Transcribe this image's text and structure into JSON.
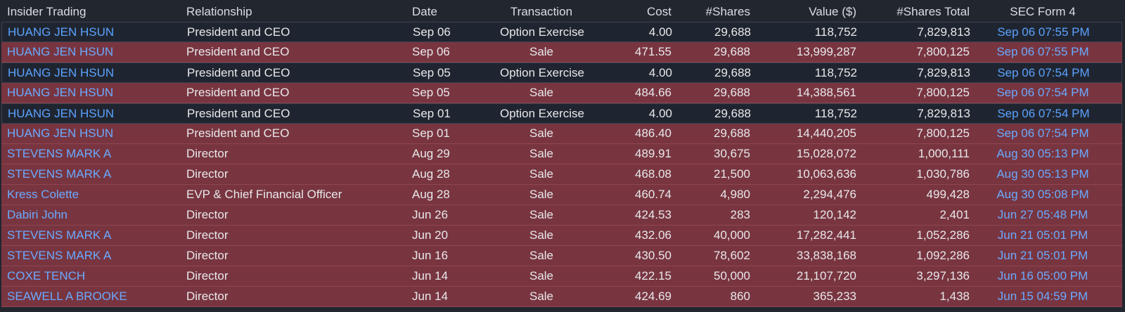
{
  "columns": {
    "insider": "Insider Trading",
    "relationship": "Relationship",
    "date": "Date",
    "transaction": "Transaction",
    "cost": "Cost",
    "shares": "#Shares",
    "value": "Value ($)",
    "shares_total": "#Shares Total",
    "sec_form": "SEC Form 4"
  },
  "colors": {
    "background": "#22262f",
    "buy_row": "#1f2530",
    "sale_row": "#783540",
    "link": "#5aa2ff",
    "text": "#e8e8ea"
  },
  "rows": [
    {
      "insider": "HUANG JEN HSUN",
      "relationship": "President and CEO",
      "date": "Sep 06",
      "transaction": "Option Exercise",
      "cost": "4.00",
      "shares": "29,688",
      "value": "118,752",
      "shares_total": "7,829,813",
      "sec_form": "Sep 06 07:55 PM",
      "kind": "buy"
    },
    {
      "insider": "HUANG JEN HSUN",
      "relationship": "President and CEO",
      "date": "Sep 06",
      "transaction": "Sale",
      "cost": "471.55",
      "shares": "29,688",
      "value": "13,999,287",
      "shares_total": "7,800,125",
      "sec_form": "Sep 06 07:55 PM",
      "kind": "sale"
    },
    {
      "insider": "HUANG JEN HSUN",
      "relationship": "President and CEO",
      "date": "Sep 05",
      "transaction": "Option Exercise",
      "cost": "4.00",
      "shares": "29,688",
      "value": "118,752",
      "shares_total": "7,829,813",
      "sec_form": "Sep 06 07:54 PM",
      "kind": "buy"
    },
    {
      "insider": "HUANG JEN HSUN",
      "relationship": "President and CEO",
      "date": "Sep 05",
      "transaction": "Sale",
      "cost": "484.66",
      "shares": "29,688",
      "value": "14,388,561",
      "shares_total": "7,800,125",
      "sec_form": "Sep 06 07:54 PM",
      "kind": "sale"
    },
    {
      "insider": "HUANG JEN HSUN",
      "relationship": "President and CEO",
      "date": "Sep 01",
      "transaction": "Option Exercise",
      "cost": "4.00",
      "shares": "29,688",
      "value": "118,752",
      "shares_total": "7,829,813",
      "sec_form": "Sep 06 07:54 PM",
      "kind": "buy"
    },
    {
      "insider": "HUANG JEN HSUN",
      "relationship": "President and CEO",
      "date": "Sep 01",
      "transaction": "Sale",
      "cost": "486.40",
      "shares": "29,688",
      "value": "14,440,205",
      "shares_total": "7,800,125",
      "sec_form": "Sep 06 07:54 PM",
      "kind": "sale"
    },
    {
      "insider": "STEVENS MARK A",
      "relationship": "Director",
      "date": "Aug 29",
      "transaction": "Sale",
      "cost": "489.91",
      "shares": "30,675",
      "value": "15,028,072",
      "shares_total": "1,000,111",
      "sec_form": "Aug 30 05:13 PM",
      "kind": "sale"
    },
    {
      "insider": "STEVENS MARK A",
      "relationship": "Director",
      "date": "Aug 28",
      "transaction": "Sale",
      "cost": "468.08",
      "shares": "21,500",
      "value": "10,063,636",
      "shares_total": "1,030,786",
      "sec_form": "Aug 30 05:13 PM",
      "kind": "sale"
    },
    {
      "insider": "Kress Colette",
      "relationship": "EVP & Chief Financial Officer",
      "date": "Aug 28",
      "transaction": "Sale",
      "cost": "460.74",
      "shares": "4,980",
      "value": "2,294,476",
      "shares_total": "499,428",
      "sec_form": "Aug 30 05:08 PM",
      "kind": "sale"
    },
    {
      "insider": "Dabiri John",
      "relationship": "Director",
      "date": "Jun 26",
      "transaction": "Sale",
      "cost": "424.53",
      "shares": "283",
      "value": "120,142",
      "shares_total": "2,401",
      "sec_form": "Jun 27 05:48 PM",
      "kind": "sale"
    },
    {
      "insider": "STEVENS MARK A",
      "relationship": "Director",
      "date": "Jun 20",
      "transaction": "Sale",
      "cost": "432.06",
      "shares": "40,000",
      "value": "17,282,441",
      "shares_total": "1,052,286",
      "sec_form": "Jun 21 05:01 PM",
      "kind": "sale"
    },
    {
      "insider": "STEVENS MARK A",
      "relationship": "Director",
      "date": "Jun 16",
      "transaction": "Sale",
      "cost": "430.50",
      "shares": "78,602",
      "value": "33,838,168",
      "shares_total": "1,092,286",
      "sec_form": "Jun 21 05:01 PM",
      "kind": "sale"
    },
    {
      "insider": "COXE TENCH",
      "relationship": "Director",
      "date": "Jun 14",
      "transaction": "Sale",
      "cost": "422.15",
      "shares": "50,000",
      "value": "21,107,720",
      "shares_total": "3,297,136",
      "sec_form": "Jun 16 05:00 PM",
      "kind": "sale"
    },
    {
      "insider": "SEAWELL A BROOKE",
      "relationship": "Director",
      "date": "Jun 14",
      "transaction": "Sale",
      "cost": "424.69",
      "shares": "860",
      "value": "365,233",
      "shares_total": "1,438",
      "sec_form": "Jun 15 04:59 PM",
      "kind": "sale"
    }
  ]
}
